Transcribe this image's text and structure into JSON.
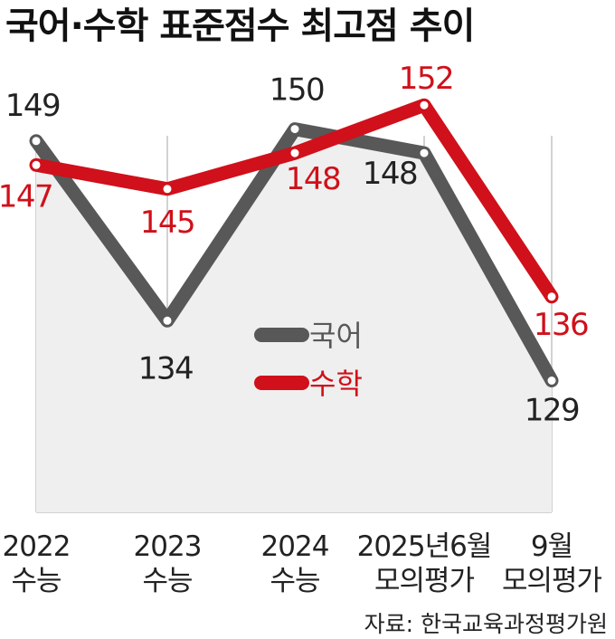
{
  "title": "국어·수학 표준점수 최고점 추이",
  "source": "자료: 한국교육과정평가원",
  "colors": {
    "korean": "#585858",
    "math": "#d0101a",
    "area": "#efefef",
    "grid": "#c4c4c4"
  },
  "chart_data": {
    "type": "line",
    "title": "국어·수학 표준점수 최고점 추이",
    "categories": [
      [
        "2022",
        "수능"
      ],
      [
        "2023",
        "수능"
      ],
      [
        "2024",
        "수능"
      ],
      [
        "2025년6월",
        "모의평가"
      ],
      [
        "9월",
        "모의평가"
      ]
    ],
    "series": [
      {
        "name": "국어",
        "values": [
          149,
          134,
          150,
          148,
          129
        ]
      },
      {
        "name": "수학",
        "values": [
          147,
          145,
          148,
          152,
          136
        ]
      }
    ],
    "ylim": [
      118,
      157
    ],
    "grid": "vertical",
    "legend": "center"
  }
}
